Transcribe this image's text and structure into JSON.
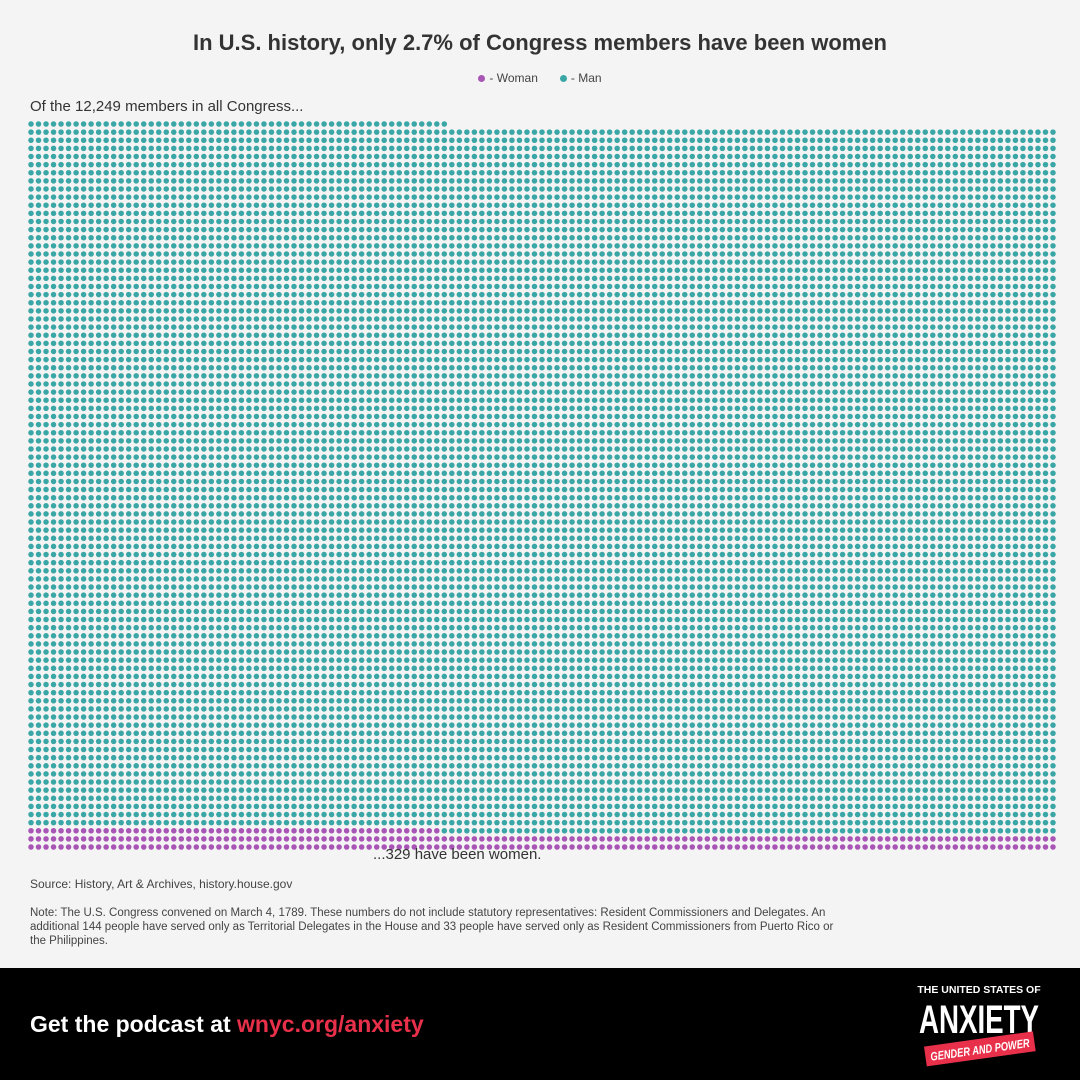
{
  "colors": {
    "woman": "#a855b5",
    "man": "#3aa6a6",
    "background": "#f4f4f4",
    "footer": "#000000",
    "accent": "#e8304a"
  },
  "header": {
    "title": "In U.S. history, only 2.7% of Congress members have been women"
  },
  "legend": [
    {
      "label": "- Woman",
      "color": "#a855b5"
    },
    {
      "label": "- Man",
      "color": "#3aa6a6"
    }
  ],
  "annotations": {
    "lead": "Of the 12,249 members in all Congress...",
    "closing": "...329 have been women."
  },
  "source": "Source: History, Art & Archives, history.house.gov",
  "note": "Note: The U.S. Congress convened on March 4, 1789. These numbers do not include statutory representatives: Resident Commissioners and Delegates. An additional 144 people have served only as Territorial Delegates in the House and 33 people have served only as Resident Commissioners from Puerto Rico or the Philippines.",
  "footer": {
    "cta_prefix": "Get the podcast at ",
    "cta_link": "wnyc.org/anxiety",
    "logo_line1": "THE UNITED STATES OF",
    "logo_line2": "ANXIETY",
    "logo_line3": "GENDER AND POWER"
  },
  "chart_data": {
    "type": "waffle",
    "unit": "Congress member",
    "total": 12249,
    "series": [
      {
        "name": "Woman",
        "value": 329,
        "color": "#a855b5"
      },
      {
        "name": "Man",
        "value": 11920,
        "color": "#3aa6a6"
      }
    ],
    "percent_women": 2.7
  }
}
